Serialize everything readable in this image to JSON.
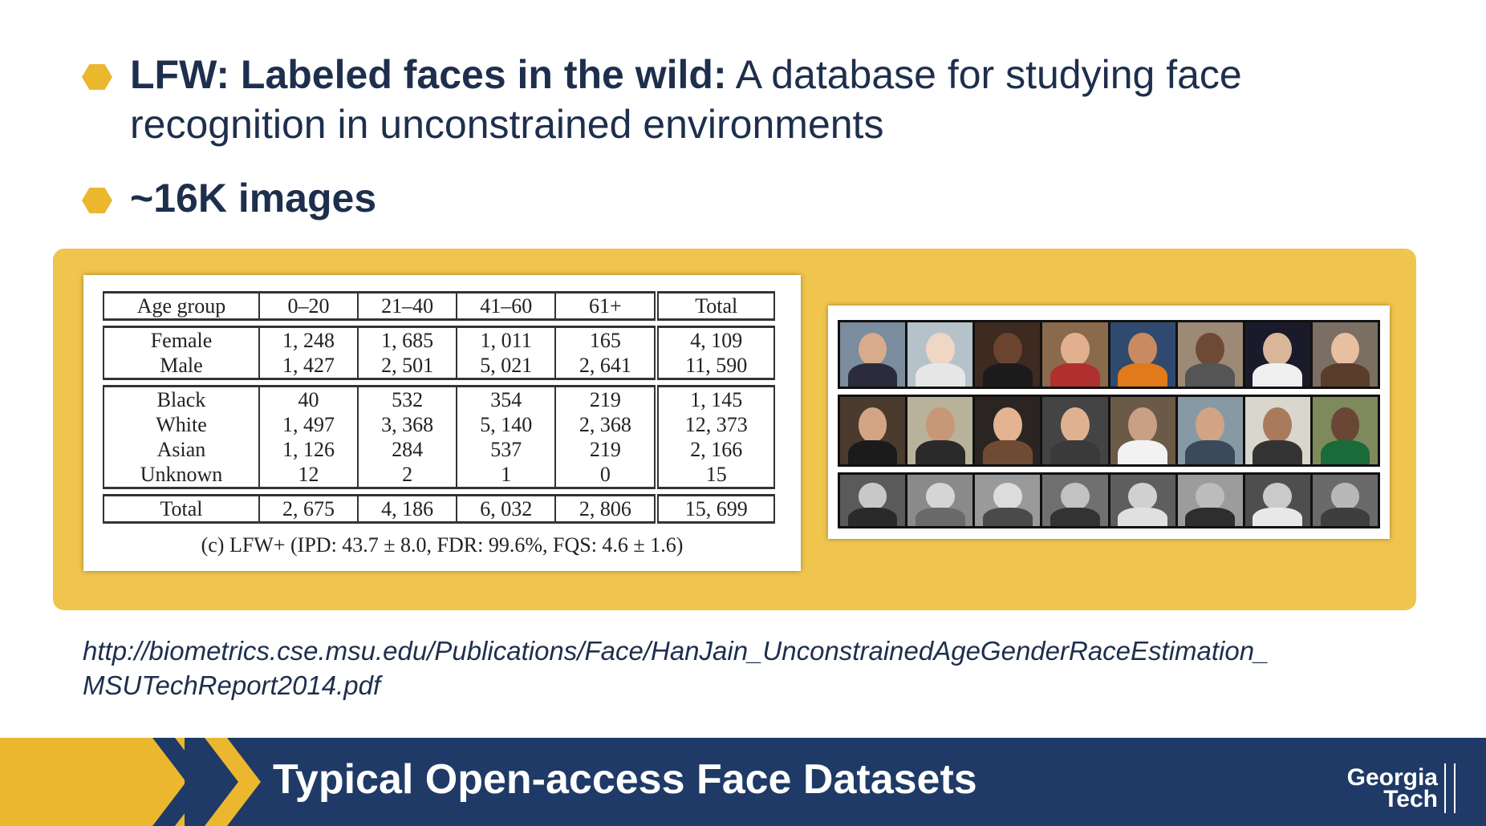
{
  "bullets": [
    {
      "bold": "LFW: Labeled faces in the wild:",
      "text": " A database for studying face recognition in unconstrained environments"
    },
    {
      "bold": "~16K images",
      "text": ""
    }
  ],
  "table": {
    "headers": [
      "Age group",
      "0–20",
      "21–40",
      "41–60",
      "61+",
      "Total"
    ],
    "gender_rows": [
      [
        "Female",
        "1, 248",
        "1, 685",
        "1, 011",
        "165",
        "4, 109"
      ],
      [
        "Male",
        "1, 427",
        "2, 501",
        "5, 021",
        "2, 641",
        "11, 590"
      ]
    ],
    "race_rows": [
      [
        "Black",
        "40",
        "532",
        "354",
        "219",
        "1, 145"
      ],
      [
        "White",
        "1, 497",
        "3, 368",
        "5, 140",
        "2, 368",
        "12, 373"
      ],
      [
        "Asian",
        "1, 126",
        "284",
        "537",
        "219",
        "2, 166"
      ],
      [
        "Unknown",
        "12",
        "2",
        "1",
        "0",
        "15"
      ]
    ],
    "total_row": [
      "Total",
      "2, 675",
      "4, 186",
      "6, 032",
      "2, 806",
      "15, 699"
    ],
    "caption": "(c) LFW+ (IPD: 43.7 ± 8.0, FDR: 99.6%, FQS: 4.6 ± 1.6)"
  },
  "faces": {
    "row1": [
      {
        "skin": "#d8ab8c",
        "shirt": "#2b2b3b",
        "bg": "#7a8c9e"
      },
      {
        "skin": "#f0d6c4",
        "shirt": "#e6e6e6",
        "bg": "#b6c2c9"
      },
      {
        "skin": "#6b4430",
        "shirt": "#1b1b1b",
        "bg": "#3d2a20"
      },
      {
        "skin": "#e2b08f",
        "shirt": "#b03030",
        "bg": "#8a6a4d"
      },
      {
        "skin": "#c98a62",
        "shirt": "#e07a1a",
        "bg": "#2f4a6e"
      },
      {
        "skin": "#6e4a36",
        "shirt": "#555",
        "bg": "#9c8a76"
      },
      {
        "skin": "#d9b59a",
        "shirt": "#f0f0f0",
        "bg": "#1a1a2a"
      },
      {
        "skin": "#e7c0a2",
        "shirt": "#5a3d2a",
        "bg": "#7b6f63"
      }
    ],
    "row2": [
      {
        "skin": "#d4a585",
        "shirt": "#1b1b1b",
        "bg": "#4a3b2e"
      },
      {
        "skin": "#c79778",
        "shirt": "#2a2a2a",
        "bg": "#b9b29a"
      },
      {
        "skin": "#e3b392",
        "shirt": "#704b33",
        "bg": "#2a2522"
      },
      {
        "skin": "#e0b191",
        "shirt": "#3a3a3a",
        "bg": "#444"
      },
      {
        "skin": "#caa084",
        "shirt": "#f2f2f2",
        "bg": "#6b5a47"
      },
      {
        "skin": "#d2a384",
        "shirt": "#3a4a5a",
        "bg": "#8899a6"
      },
      {
        "skin": "#a97a5c",
        "shirt": "#333",
        "bg": "#d9d6cc"
      },
      {
        "skin": "#6a4634",
        "shirt": "#1a6a3a",
        "bg": "#7f8a5c"
      }
    ],
    "row3": [
      {
        "skin": "#c8c8c8",
        "shirt": "#2a2a2a",
        "bg": "#5a5a5a"
      },
      {
        "skin": "#d5d5d5",
        "shirt": "#6a6a6a",
        "bg": "#8a8a8a"
      },
      {
        "skin": "#dcdcdc",
        "shirt": "#4a4a4a",
        "bg": "#9a9a9a"
      },
      {
        "skin": "#c2c2c2",
        "shirt": "#333",
        "bg": "#707070"
      },
      {
        "skin": "#d0d0d0",
        "shirt": "#e0e0e0",
        "bg": "#5e5e5e"
      },
      {
        "skin": "#bcbcbc",
        "shirt": "#2e2e2e",
        "bg": "#9c9c9c"
      },
      {
        "skin": "#cacaca",
        "shirt": "#e8e8e8",
        "bg": "#4e4e4e"
      },
      {
        "skin": "#b8b8b8",
        "shirt": "#3e3e3e",
        "bg": "#6a6a6a"
      }
    ]
  },
  "link_text": "http://biometrics.cse.msu.edu/Publications/Face/HanJain_UnconstrainedAgeGenderRaceEstimation_\nMSUTechReport2014.pdf",
  "footer": {
    "title": "Typical Open-access Face Datasets",
    "logo_line1": "Georgia",
    "logo_line2": "Tech"
  },
  "colors": {
    "navy": "#1f3a66",
    "gold": "#eab72f",
    "panel": "#efc54d",
    "text": "#1e2f4d"
  }
}
